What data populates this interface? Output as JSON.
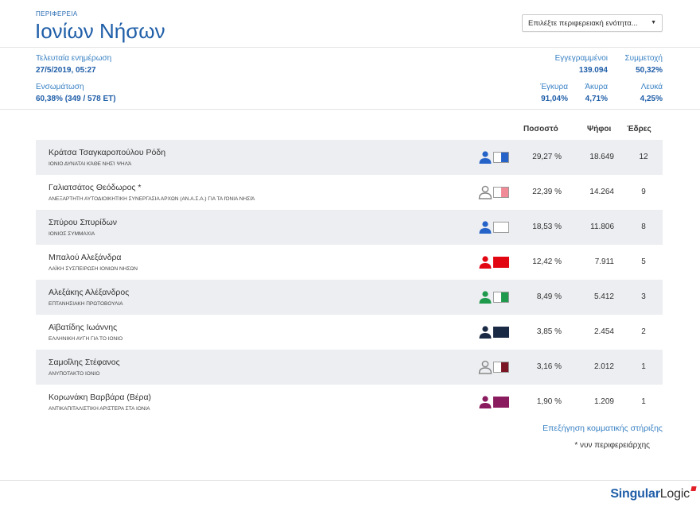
{
  "header": {
    "kicker": "Περιφερεια",
    "title": "Ιονίων Νήσων",
    "select_value": "Επιλέξτε περιφερειακή ενότητα..."
  },
  "stats": {
    "last_update_label": "Τελευταία ενημέρωση",
    "last_update_value": "27/5/2019, 05:27",
    "integration_label": "Ενσωμάτωση",
    "integration_value": "60,38% (349 / 578 ΕΤ)",
    "registered_label": "Εγγεγραμμένοι",
    "registered_value": "139.094",
    "turnout_label": "Συμμετοχή",
    "turnout_value": "50,32%",
    "valid_label": "Έγκυρα",
    "valid_value": "91,04%",
    "invalid_label": "Άκυρα",
    "invalid_value": "4,71%",
    "blank_label": "Λευκά",
    "blank_value": "4,25%"
  },
  "table": {
    "headers": {
      "percent": "Ποσοστό",
      "votes": "Ψήφοι",
      "seats": "Έδρες"
    },
    "rows": [
      {
        "candidate": "Κράτσα Τσαγκαροπούλου Ρόδη",
        "party": "ΙΟΝΙΟ ΔΥΝΑΤΑΙ Κάθε νησί ψηλά",
        "percent": "29,27 %",
        "votes": "18.649",
        "seats": "12",
        "color": "#2563c9",
        "icon_style": "filled",
        "share": 0.5
      },
      {
        "candidate": "Γαλιατσάτος Θεόδωρος *",
        "party": "ΑΝΕΞΑΡΤΗΤΗ ΑΥΤΟΔΙΟΙΚΗΤΙΚΗ ΣΥΝΕΡΓΑΣΙΑ ΑΡΧΩΝ (ΑΝ.Α.Σ.Α.) για τα Ιόνια Νησιά",
        "percent": "22,39 %",
        "votes": "14.264",
        "seats": "9",
        "color": "#f08a96",
        "icon_style": "outline",
        "share": 0.5
      },
      {
        "candidate": "Σπύρου Σπυρίδων",
        "party": "ΙΟΝΙΟΣ ΣΥΜΜΑΧΙΑ",
        "percent": "18,53 %",
        "votes": "11.806",
        "seats": "8",
        "color": "#ffffff",
        "icon_style": "filled",
        "share": 0
      },
      {
        "candidate": "Μπαλού Αλεξάνδρα",
        "party": "ΛΑΪΚΗ ΣΥΣΠΕΙΡΩΣΗ ΙΟΝΙΩΝ ΝΗΣΩΝ",
        "percent": "12,42 %",
        "votes": "7.911",
        "seats": "5",
        "color": "#e20613",
        "icon_style": "filled",
        "share": 1
      },
      {
        "candidate": "Αλεξάκης Αλέξανδρος",
        "party": "ΕΠΤΑΝΗΣΙΑΚΗ ΠΡΩΤΟΒΟΥΛΙΑ",
        "percent": "8,49 %",
        "votes": "5.412",
        "seats": "3",
        "color": "#1f9a4c",
        "icon_style": "filled",
        "share": 0.5
      },
      {
        "candidate": "Αϊβατίδης Ιωάννης",
        "party": "ΕΛΛΗΝΙΚΗ ΑΥΓΗ ΓΙΑ ΤΟ ΙΟΝΙΟ",
        "percent": "3,85 %",
        "votes": "2.454",
        "seats": "2",
        "color": "#1b2a44",
        "icon_style": "filled",
        "share": 1
      },
      {
        "candidate": "Σαμοΐλης Στέφανος",
        "party": "ΑΝΥΠΟΤΑΚΤΟ ΙΟΝΙΟ",
        "percent": "3,16 %",
        "votes": "2.012",
        "seats": "1",
        "color": "#7a1623",
        "icon_style": "outline",
        "share": 0.5
      },
      {
        "candidate": "Κορωνάκη Βαρβάρα (Βέρα)",
        "party": "ΑΝΤΙΚΑΠΙΤΑΛΙΣΤΙΚΗ ΑΡΙΣΤΕΡΑ ΣΤΑ ΙΟΝΙΑ",
        "percent": "1,90 %",
        "votes": "1.209",
        "seats": "1",
        "color": "#8a1b5e",
        "icon_style": "filled",
        "share": 1
      }
    ]
  },
  "footer_link": "Επεξήγηση κομματικής στήριξης",
  "footnote": "* νυν περιφερειάρχης",
  "brand": {
    "part1": "Singular",
    "part2": "Logic"
  }
}
